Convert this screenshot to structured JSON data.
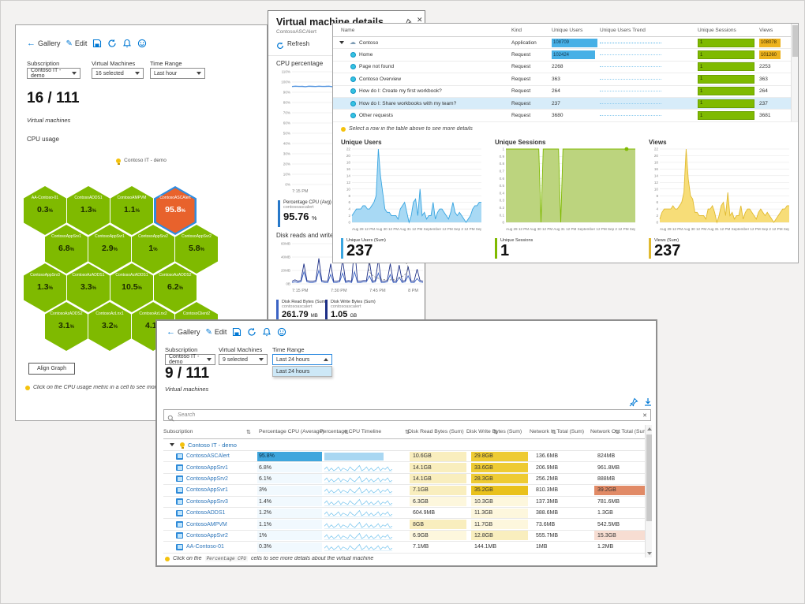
{
  "hex_window": {
    "toolbar": {
      "back": "Gallery",
      "edit": "Edit"
    },
    "filters": [
      {
        "label": "Subscription",
        "value": "Contoso IT - demo"
      },
      {
        "label": "Virtual Machines",
        "value": "16 selected"
      },
      {
        "label": "Time Range",
        "value": "Last hour"
      }
    ],
    "count": "16 / 111",
    "count_caption": "Virtual machines",
    "section_title": "CPU usage",
    "group_label": "Contoso IT - demo",
    "hexes": [
      {
        "name": "AA-Contoso-01",
        "value": "0.3"
      },
      {
        "name": "ContosoADDS1",
        "value": "1.3"
      },
      {
        "name": "ContosoAMPVM",
        "value": "1.1"
      },
      {
        "name": "ContosoASCAlert",
        "value": "95.8",
        "alert": true
      },
      {
        "name": "ContosoAppSrv1",
        "value": "6.8"
      },
      {
        "name": "ContosoAppSvr1",
        "value": "2.9"
      },
      {
        "name": "ContosoAppSrv2",
        "value": "1"
      },
      {
        "name": "ContosoAppSvr2",
        "value": "5.8"
      },
      {
        "name": "ContosoAppSrv3",
        "value": "1.3"
      },
      {
        "name": "ContosoAzADDS1",
        "value": "3.3"
      },
      {
        "name": "ContosoAzADDS1",
        "value": "10.5"
      },
      {
        "name": "ContosoAzADDS2",
        "value": "6.2"
      },
      {
        "name": "ContosoAzADDS2",
        "value": "3.1"
      },
      {
        "name": "ContosoAzLnx1",
        "value": "3.2"
      },
      {
        "name": "ContosoAzLnx2",
        "value": "4.1"
      },
      {
        "name": "ContosoClient2",
        "value": ""
      }
    ],
    "align_button": "Align Graph",
    "tip": "Click on the CPU usage metric in a cell to see more details a"
  },
  "details_window": {
    "title": "Virtual machine details",
    "subtitle": "ContosoASCAlert",
    "refresh": "Refresh",
    "cpu_chart": {
      "title": "CPU percentage",
      "ymax": 110,
      "yticks": [
        "110%",
        "100%",
        "90%",
        "80%",
        "70%",
        "60%",
        "50%",
        "40%",
        "30%",
        "20%",
        "10%",
        "0%"
      ],
      "xtick": "7:15 PM",
      "values": [
        95.6,
        95.9,
        95.7,
        95.8,
        95.5,
        95.9,
        95.8,
        95.6,
        95.9,
        95.7,
        95.8,
        95.9,
        95.5,
        95.8,
        95.7,
        95.9,
        95.6,
        95.8,
        95.9,
        95.7,
        95.6,
        95.9,
        95.8,
        95.7,
        95.9,
        95.6,
        95.8,
        95.5,
        95.9,
        95.8,
        95.7,
        95.9,
        95.6,
        95.8,
        95.7,
        95.9,
        95.8,
        95.6,
        95.9,
        95.7
      ],
      "legend": {
        "label": "Percentage CPU (Avg)",
        "resource": "contosoascalert",
        "value": "95.76",
        "unit": "%"
      }
    },
    "disk_chart": {
      "title": "Disk reads and writes",
      "ymax": 60,
      "yticks": [
        "60MB",
        "40MB",
        "20MB",
        "0B"
      ],
      "xticks": [
        "7:15 PM",
        "7:30 PM",
        "7:45 PM",
        "8 PM"
      ],
      "read_values": [
        2,
        3,
        2,
        3,
        18,
        3,
        2,
        2,
        3,
        20,
        3,
        2,
        2,
        14,
        2,
        2,
        3,
        16,
        2,
        3,
        2,
        18,
        2,
        2,
        3,
        3,
        12,
        2,
        3,
        16,
        2,
        2,
        3,
        14,
        2,
        2,
        10,
        2,
        3,
        12,
        2,
        2,
        8,
        3,
        2
      ],
      "write_values": [
        4,
        6,
        4,
        5,
        30,
        5,
        4,
        4,
        5,
        38,
        5,
        4,
        4,
        30,
        4,
        4,
        5,
        36,
        4,
        5,
        4,
        56,
        4,
        4,
        5,
        5,
        34,
        4,
        5,
        36,
        4,
        4,
        5,
        30,
        4,
        4,
        28,
        4,
        5,
        26,
        4,
        4,
        22,
        5,
        4
      ],
      "legends": [
        {
          "label": "Disk Read Bytes (Sum)",
          "resource": "contosoascalert",
          "value": "261.79",
          "unit": "MB"
        },
        {
          "label": "Disk Write Bytes (Sum)",
          "resource": "contosoascalert",
          "value": "1.05",
          "unit": "GB"
        }
      ]
    }
  },
  "insights_window": {
    "columns": [
      "Name",
      "Kind",
      "Unique Users",
      "Unique Users Trend",
      "Unique Sessions",
      "Views"
    ],
    "rows": [
      {
        "name": "Contoso",
        "kind": "Application",
        "users": "108709",
        "users_bar": 1,
        "sessions": "1",
        "views": "108078",
        "views_bar": 1,
        "icon": "cloud",
        "expander": true,
        "level": 0,
        "highlight": false
      },
      {
        "name": "Home",
        "kind": "Request",
        "users": "102424",
        "users_bar": 0.94,
        "sessions": "1",
        "views": "101260",
        "views_bar": 1,
        "icon": "dot",
        "level": 1,
        "highlight": false
      },
      {
        "name": "Page not found",
        "kind": "Request",
        "users": "2268",
        "users_bar": 0,
        "sessions": "1",
        "views": "2253",
        "views_bar": 0,
        "icon": "dot",
        "level": 1,
        "highlight": false
      },
      {
        "name": "Contoso Overview",
        "kind": "Request",
        "users": "363",
        "users_bar": 0,
        "sessions": "1",
        "views": "363",
        "views_bar": 0,
        "icon": "dot",
        "level": 1,
        "highlight": false
      },
      {
        "name": "How do I: Create my first workbook?",
        "kind": "Request",
        "users": "264",
        "users_bar": 0,
        "sessions": "1",
        "views": "264",
        "views_bar": 0,
        "icon": "dot",
        "level": 1,
        "highlight": false
      },
      {
        "name": "How do I: Share workbooks with my team?",
        "kind": "Request",
        "users": "237",
        "users_bar": 0,
        "sessions": "1",
        "views": "237",
        "views_bar": 0,
        "icon": "dot",
        "level": 1,
        "highlight": true
      },
      {
        "name": "Other requests",
        "kind": "Request",
        "users": "3680",
        "users_bar": 0,
        "sessions": "1",
        "views": "3681",
        "views_bar": 0,
        "icon": "dot",
        "level": 1,
        "highlight": false
      }
    ],
    "tip": "Select a row in the table above to see more details",
    "charts": [
      {
        "title": "Unique Users",
        "color": "blue",
        "ymax": 22,
        "yticks": [
          "22",
          "20",
          "18",
          "16",
          "14",
          "12",
          "10",
          "8",
          "6",
          "4",
          "2",
          "0"
        ],
        "values": [
          2,
          3,
          4,
          4,
          4,
          5,
          5,
          4,
          4,
          5,
          6,
          8,
          22,
          14,
          9,
          4,
          3,
          3,
          2,
          2,
          2,
          1,
          4,
          5,
          6,
          3,
          0,
          2,
          6,
          7,
          2,
          10,
          2,
          3,
          1,
          2,
          2,
          6,
          1,
          3,
          4,
          4,
          3,
          2,
          1,
          3,
          6,
          3,
          2,
          3,
          2,
          1,
          0,
          1,
          2,
          4,
          5,
          5,
          6,
          6
        ],
        "xaxis": "Aug 29 12 PM Aug 30 12 PM Aug 31 12 PM September 12 PM Sep 2 12 PM Sep 3 12 PM Sep 4",
        "legend_label": "Unique Users (Sum)",
        "total": "237",
        "marker_end": false
      },
      {
        "title": "Unique Sessions",
        "color": "green",
        "ymax": 1,
        "yticks": [
          "1",
          "0.9",
          "0.8",
          "0.7",
          "0.6",
          "0.5",
          "0.4",
          "0.3",
          "0.2",
          "0.1",
          "0"
        ],
        "values": [
          1,
          1,
          1,
          1,
          1,
          1,
          1,
          1,
          1,
          1,
          1,
          1,
          1,
          1,
          1,
          1,
          0,
          1,
          1,
          1,
          1,
          1,
          1,
          1,
          1,
          0,
          1,
          1,
          1,
          1,
          1,
          1,
          1,
          1,
          1,
          1,
          1,
          1,
          1,
          1,
          1,
          1,
          1,
          1,
          1,
          1,
          1,
          1,
          1,
          1,
          1,
          1,
          1,
          1,
          1,
          1,
          1,
          1,
          1,
          1
        ],
        "xaxis": "Aug 29 12 PM Aug 30 12 PM Aug 31 12 PM September 12 PM Sep 2 12 PM Sep 3 12 PM Sep 4 8 AM",
        "legend_label": "Unique Sessions",
        "total": "1",
        "marker_end": true
      },
      {
        "title": "Views",
        "color": "yellow",
        "ymax": 22,
        "yticks": [
          "22",
          "20",
          "18",
          "16",
          "14",
          "12",
          "10",
          "8",
          "6",
          "4",
          "2",
          "0"
        ],
        "values": [
          1,
          3,
          4,
          4,
          4,
          4,
          5,
          4,
          4,
          5,
          6,
          9,
          22,
          13,
          8,
          7,
          3,
          3,
          2,
          2,
          2,
          1,
          4,
          4,
          5,
          3,
          0,
          2,
          5,
          6,
          2,
          9,
          2,
          3,
          1,
          2,
          2,
          5,
          1,
          3,
          4,
          4,
          3,
          2,
          1,
          3,
          4,
          3,
          2,
          3,
          2,
          1,
          0,
          1,
          2,
          3,
          4,
          4,
          5,
          5
        ],
        "legend_label": "Views (Sum)",
        "total": "237",
        "marker_end": false
      }
    ]
  },
  "vm_table_window": {
    "toolbar": {
      "back": "Gallery",
      "edit": "Edit"
    },
    "filters": [
      {
        "label": "Subscription",
        "value": "Contoso IT - demo"
      },
      {
        "label": "Virtual Machines",
        "value": "9 selected"
      },
      {
        "label": "Time Range",
        "value": "Last 24 hours"
      }
    ],
    "time_dropdown_option": "Last 24 hours",
    "count": "9 / 111",
    "count_caption": "Virtual machines",
    "search_placeholder": "Search",
    "columns": [
      "Subscription",
      "Percentage CPU (Average)",
      "Percentage CPU Timeline",
      "Disk Read Bytes (Sum)",
      "Disk Write Bytes (Sum)",
      "Network In Total (Sum)",
      "Network Out Total (Sum)"
    ],
    "group_row": "Contoso IT - demo",
    "spark": [
      2,
      4,
      1,
      3,
      1,
      2,
      4,
      1,
      3,
      2,
      1,
      4,
      2,
      1,
      3,
      5,
      1,
      2,
      4,
      1,
      3,
      1,
      2,
      4,
      1,
      3,
      2,
      4,
      1,
      2
    ],
    "rows": [
      {
        "name": "ContosoASCAlert",
        "cpu": "95.8%",
        "timeline": "bar",
        "dr": "10.6GB",
        "dr_c": "y2",
        "dw": "29.8GB",
        "dw_c": "y4",
        "ni": "136.6MB",
        "no": "824MB",
        "no_c": ""
      },
      {
        "name": "ContosoAppSrv1",
        "cpu": "6.8%",
        "timeline": "spark",
        "dr": "14.1GB",
        "dr_c": "y2",
        "dw": "33.6GB",
        "dw_c": "y4",
        "ni": "206.9MB",
        "no": "961.8MB",
        "no_c": ""
      },
      {
        "name": "ContosoAppSrv2",
        "cpu": "6.1%",
        "timeline": "spark",
        "dr": "14.1GB",
        "dr_c": "y2",
        "dw": "28.3GB",
        "dw_c": "y4",
        "ni": "256.2MB",
        "no": "888MB",
        "no_c": ""
      },
      {
        "name": "ContosoAppSvr1",
        "cpu": "3%",
        "timeline": "spark",
        "dr": "7.1GB",
        "dr_c": "y2",
        "dw": "35.2GB",
        "dw_c": "y5",
        "ni": "810.3MB",
        "no": "39.2GB",
        "no_c": "r2"
      },
      {
        "name": "ContosoAppSrv3",
        "cpu": "1.4%",
        "timeline": "spark",
        "dr": "6.3GB",
        "dr_c": "y1",
        "dw": "10.3GB",
        "dw_c": "y1",
        "ni": "137.3MB",
        "no": "781.6MB",
        "no_c": ""
      },
      {
        "name": "ContosoADDS1",
        "cpu": "1.2%",
        "timeline": "spark",
        "dr": "604.9MB",
        "dr_c": "",
        "dw": "11.3GB",
        "dw_c": "y1",
        "ni": "388.6MB",
        "no": "1.3GB",
        "no_c": ""
      },
      {
        "name": "ContosoAMPVM",
        "cpu": "1.1%",
        "timeline": "spark",
        "dr": "8GB",
        "dr_c": "y2",
        "dw": "11.7GB",
        "dw_c": "y1",
        "ni": "73.6MB",
        "no": "542.5MB",
        "no_c": ""
      },
      {
        "name": "ContosoAppSvr2",
        "cpu": "1%",
        "timeline": "spark",
        "dr": "6.9GB",
        "dr_c": "y1",
        "dw": "12.8GB",
        "dw_c": "y2",
        "ni": "555.7MB",
        "no": "15.3GB",
        "no_c": "r1"
      },
      {
        "name": "AA-Contoso-01",
        "cpu": "0.3%",
        "timeline": "spark",
        "dr": "7.1MB",
        "dr_c": "",
        "dw": "144.1MB",
        "dw_c": "",
        "ni": "1MB",
        "no": "1.2MB",
        "no_c": ""
      }
    ],
    "footer_tip_pre": "Click on the",
    "footer_tip_code": "Percentage CPU",
    "footer_tip_post": "cells to see more details about the virtual machine"
  },
  "colors": {
    "accent": "#0078d4",
    "hex_green": "#7fba00",
    "hex_alert": "#e8622c",
    "area_blue_fill": "#a8d9f4",
    "area_blue_line": "#39a5e0",
    "area_green_fill": "#bcd47e",
    "area_green_line": "#7fba00",
    "area_yellow_fill": "#f7dd78",
    "area_yellow_line": "#e0ba31",
    "cpu_line": "#2f7ed8",
    "disk_read_line": "#3b63c4",
    "disk_write_line": "#1d2f86"
  }
}
